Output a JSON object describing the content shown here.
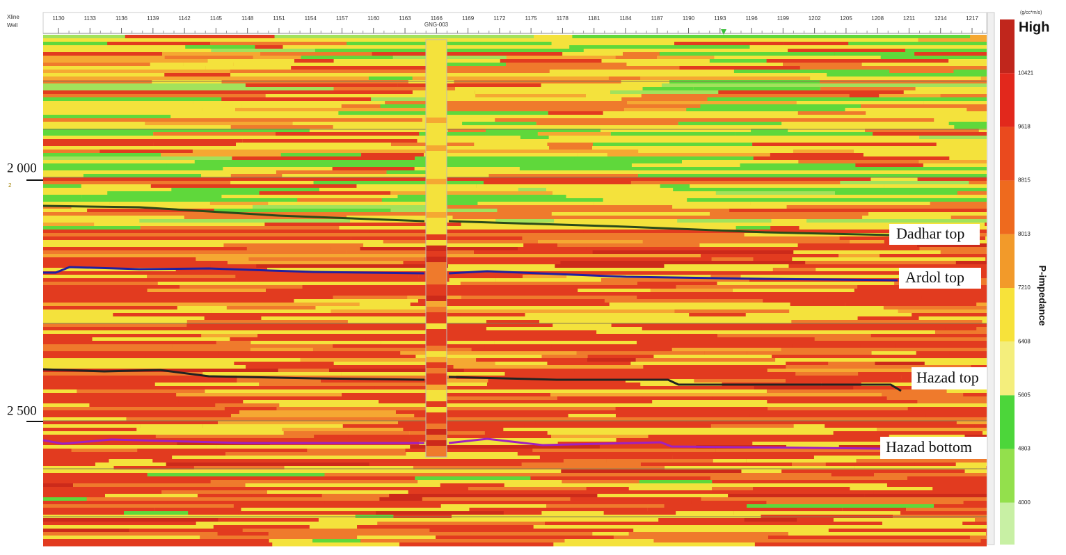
{
  "axis": {
    "row_labels": [
      "Xline",
      "Well"
    ],
    "xlines": [
      "1130",
      "1133",
      "1136",
      "1139",
      "1142",
      "1145",
      "1148",
      "1151",
      "1154",
      "1157",
      "1160",
      "1163",
      "1166",
      "1169",
      "1172",
      "1175",
      "1178",
      "1181",
      "1184",
      "1187",
      "1190",
      "1193",
      "1196",
      "1199",
      "1202",
      "1205",
      "1208",
      "1211",
      "1214",
      "1217"
    ]
  },
  "well": "GNG-003",
  "depth_labels": [
    "2 000",
    "2 500"
  ],
  "depth_sublabel": "2",
  "colorbar": {
    "unit": "(g/cc*m/s)",
    "high": "High",
    "title": "P-impedance",
    "labels": [
      "10421",
      "9618",
      "8815",
      "8013",
      "7210",
      "6408",
      "5605",
      "4803",
      "4000"
    ]
  },
  "horizons": [
    "Dadhar top",
    "Ardol top",
    "Hazad top",
    "Hazad bottom"
  ]
}
